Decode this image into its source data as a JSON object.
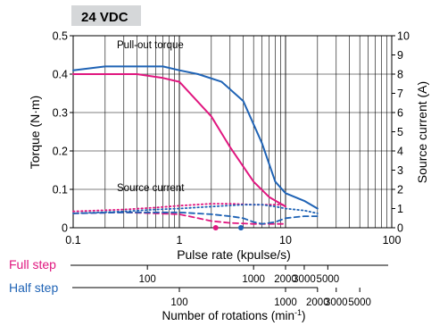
{
  "chart_data": {
    "type": "line",
    "title": "24 VDC",
    "xlabel": "Pulse rate (kpulse/s)",
    "ylabel_left": "Torque (N·m)",
    "ylabel_right": "Source current (A)",
    "x_scale": "log",
    "xlim": [
      0.1,
      100
    ],
    "ylim_left": [
      0,
      0.5
    ],
    "ylim_right": [
      0,
      10
    ],
    "x_ticks": [
      "0.1",
      "1",
      "10",
      "100"
    ],
    "y_ticks_left": [
      "0",
      "0.1",
      "0.2",
      "0.3",
      "0.4",
      "0.5"
    ],
    "y_ticks_right": [
      "0",
      "1",
      "2",
      "3",
      "4",
      "5",
      "6",
      "7",
      "8",
      "9",
      "10"
    ],
    "annotations": {
      "pullout": "Pull-out torque",
      "source": "Source current"
    },
    "colors": {
      "full": "#e0177f",
      "half": "#1f63b5",
      "title_bg": "#d5d7d9"
    },
    "series": [
      {
        "name": "Full step",
        "kind": "pull-out torque",
        "axis": "left",
        "style": "solid",
        "x": [
          0.1,
          0.2,
          0.4,
          0.7,
          1.0,
          2.0,
          3.0,
          5.0,
          7.0,
          10.0
        ],
        "y": [
          0.4,
          0.4,
          0.4,
          0.39,
          0.38,
          0.29,
          0.21,
          0.12,
          0.08,
          0.055
        ]
      },
      {
        "name": "Half step",
        "kind": "pull-out torque",
        "axis": "left",
        "style": "solid",
        "x": [
          0.1,
          0.2,
          0.4,
          0.7,
          1.0,
          1.5,
          2.5,
          4.0,
          6.0,
          8.0,
          10.0,
          15.0,
          20.0
        ],
        "y": [
          0.41,
          0.42,
          0.42,
          0.42,
          0.41,
          0.4,
          0.38,
          0.33,
          0.22,
          0.12,
          0.09,
          0.07,
          0.05
        ]
      },
      {
        "name": "Full step",
        "kind": "source current",
        "axis": "right",
        "style": "dotted",
        "x": [
          0.1,
          0.3,
          0.6,
          1.0,
          2.0,
          3.0,
          5.0,
          8.0,
          10.0
        ],
        "y": [
          0.85,
          0.95,
          1.05,
          1.15,
          1.25,
          1.25,
          1.2,
          1.2,
          1.2
        ]
      },
      {
        "name": "Full step",
        "kind": "source current",
        "axis": "right",
        "style": "dashed",
        "x": [
          0.1,
          0.3,
          0.6,
          1.0,
          1.5,
          2.0,
          3.0,
          5.0,
          8.0,
          10.0
        ],
        "y": [
          0.75,
          0.8,
          0.75,
          0.7,
          0.5,
          0.35,
          0.25,
          0.2,
          0.2,
          0.2
        ]
      },
      {
        "name": "Half step",
        "kind": "source current",
        "axis": "right",
        "style": "dotted",
        "x": [
          0.1,
          0.3,
          0.6,
          1.0,
          2.0,
          4.0,
          6.0,
          8.0,
          10.0,
          15.0,
          20.0
        ],
        "y": [
          0.75,
          0.85,
          0.95,
          1.0,
          1.1,
          1.2,
          1.2,
          1.1,
          1.0,
          0.9,
          0.75
        ]
      },
      {
        "name": "Half step",
        "kind": "source current",
        "axis": "right",
        "style": "dashed",
        "x": [
          0.1,
          0.3,
          0.6,
          1.0,
          2.0,
          3.0,
          4.0,
          5.0,
          6.0,
          8.0,
          10.0,
          15.0,
          20.0
        ],
        "y": [
          0.75,
          0.8,
          0.8,
          0.8,
          0.7,
          0.6,
          0.5,
          0.3,
          0.2,
          0.3,
          0.5,
          0.6,
          0.6
        ]
      }
    ],
    "markers": [
      {
        "series": "Full step",
        "x": 2.2
      },
      {
        "series": "Half step",
        "x": 3.8
      }
    ],
    "rotation_scales": {
      "title": "Number of rotations (min",
      "title_sup": "-1",
      "title_close": ")",
      "rows": [
        {
          "label": "Full step",
          "color": "#e0177f",
          "ticks": [
            {
              "value": 100,
              "x": 0.5
            },
            {
              "value": 1000,
              "x": 5
            },
            {
              "value": 2000,
              "x": 10
            },
            {
              "value": 3000,
              "x": 15
            },
            {
              "value": 5000,
              "x": 25
            }
          ]
        },
        {
          "label": "Half step",
          "color": "#1f63b5",
          "ticks": [
            {
              "value": 100,
              "x": 1
            },
            {
              "value": 1000,
              "x": 10
            },
            {
              "value": 2000,
              "x": 20
            },
            {
              "value": 3000,
              "x": 30
            },
            {
              "value": 5000,
              "x": 50
            }
          ]
        }
      ]
    }
  }
}
